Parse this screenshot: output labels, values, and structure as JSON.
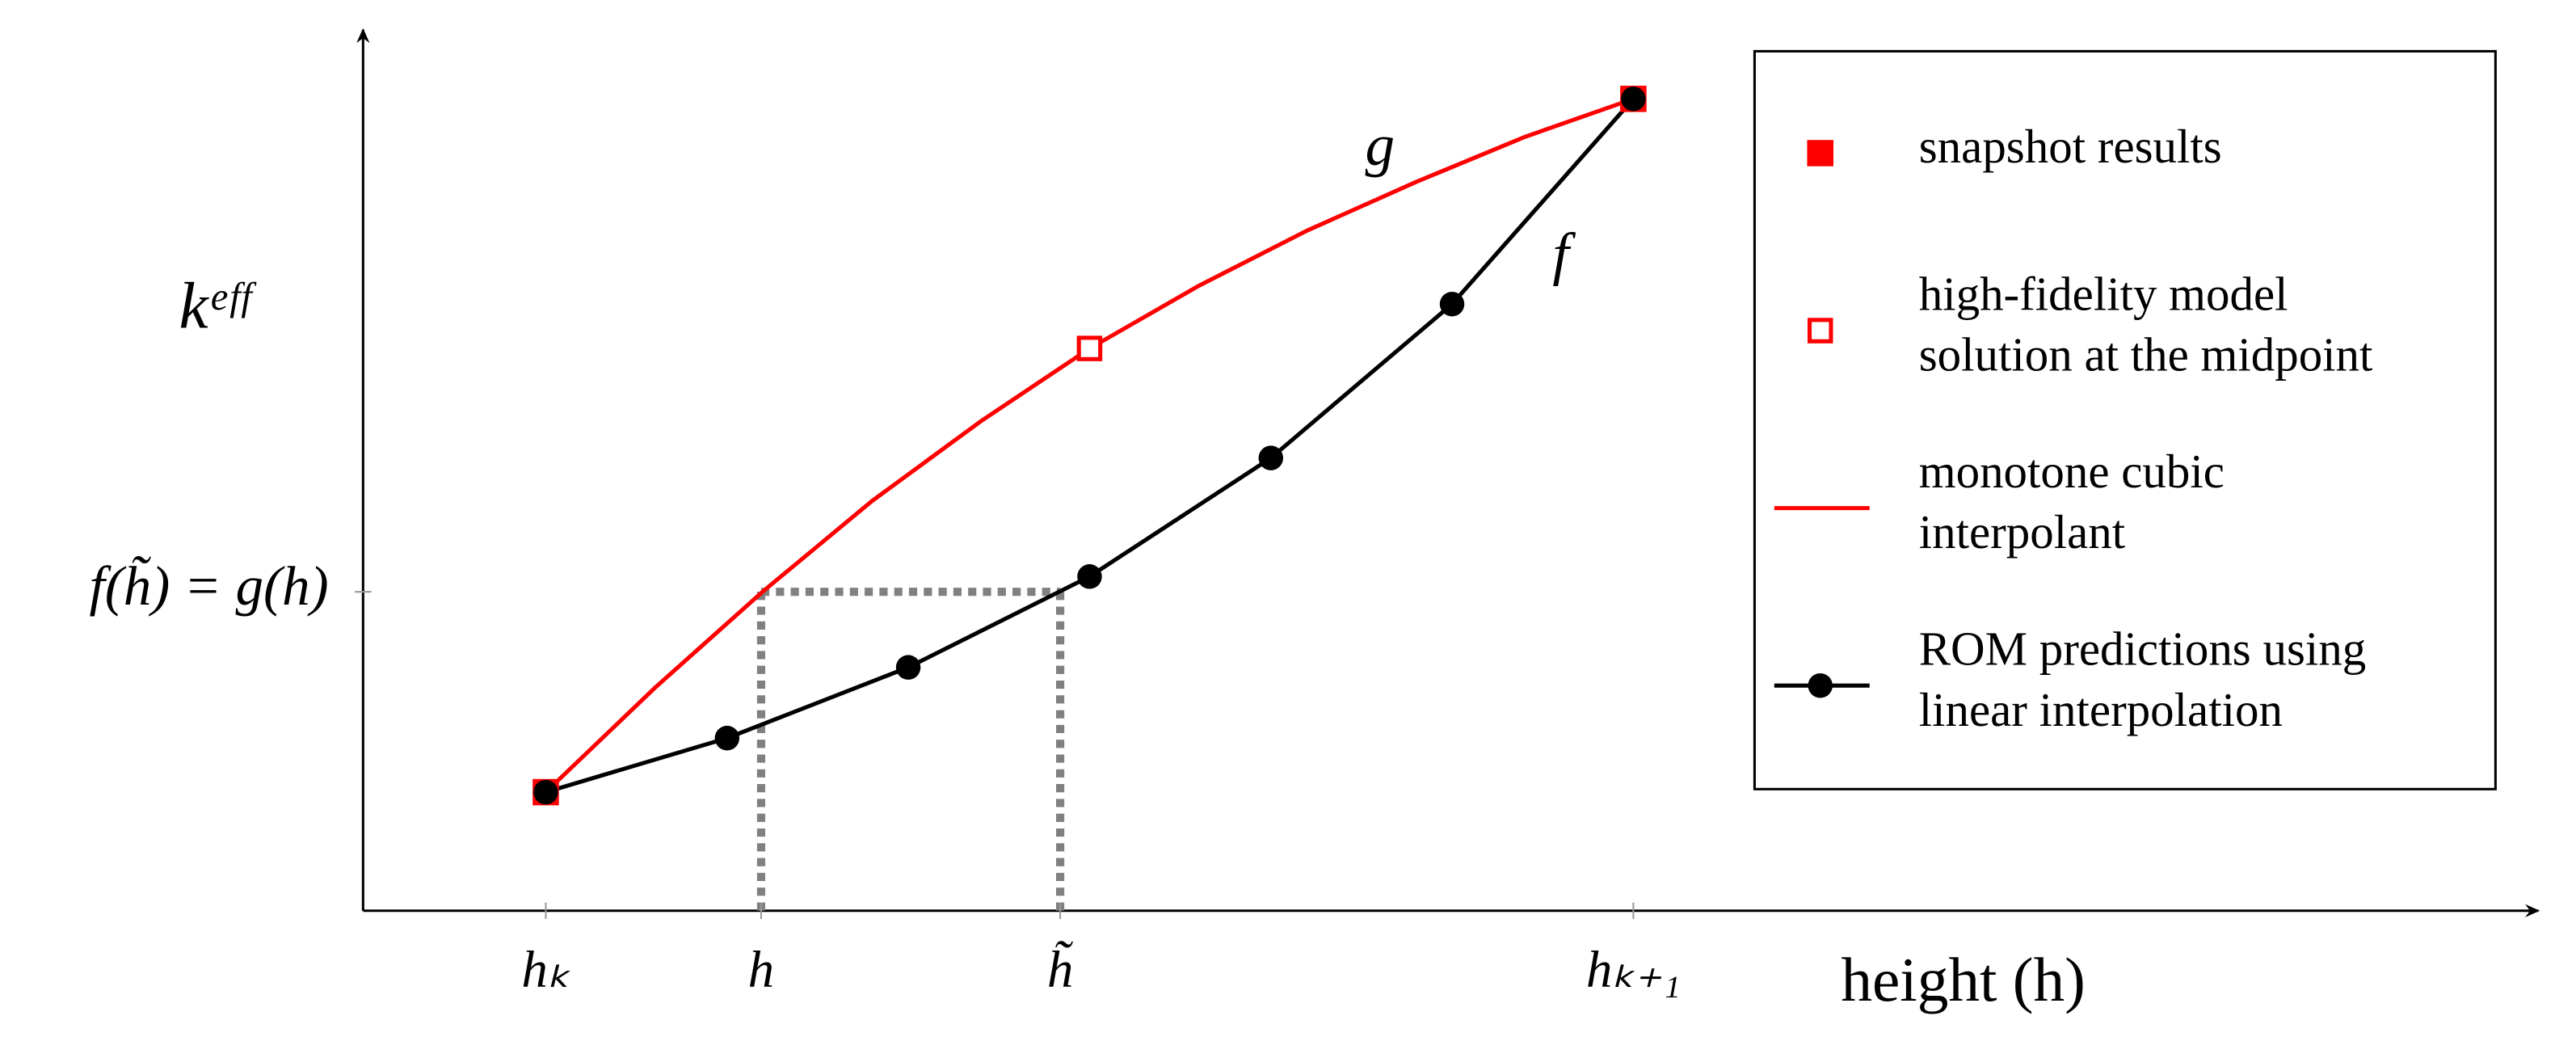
{
  "chart_data": {
    "type": "line",
    "x_label": "height (h)",
    "y_label": "kᵉᶠᶠ",
    "xlim": [
      -0.168,
      1.832
    ],
    "ylim": [
      -0.171,
      1.0995
    ],
    "xticks": [
      {
        "value": 0,
        "label": "hₖ"
      },
      {
        "value": 0.198,
        "label": "h"
      },
      {
        "value": 0.473,
        "label": "h̃"
      },
      {
        "value": 1,
        "label": "hₖ₊₁"
      }
    ],
    "yticks": [
      {
        "value": 0.289,
        "label": "f(h̃) = g(h)"
      }
    ],
    "series": [
      {
        "name": "snapshot results",
        "color": "#ff0000",
        "marker": "square",
        "line": false,
        "x": [
          0,
          1
        ],
        "values": [
          0,
          1
        ]
      },
      {
        "name": "high-fidelity model\nsolution at the midpoint",
        "color": "#ff0000",
        "marker": "open-square",
        "line": false,
        "x": [
          0.5
        ],
        "values": [
          0.64
        ]
      },
      {
        "name": "monotone cubic\ninterpolant",
        "color": "#ff0000",
        "marker": "none",
        "line": true,
        "x": [
          0,
          0.1,
          0.2,
          0.3,
          0.4,
          0.5,
          0.6,
          0.7,
          0.8,
          0.9,
          1
        ],
        "values": [
          0,
          0.15,
          0.29,
          0.42,
          0.535,
          0.64,
          0.73,
          0.81,
          0.88,
          0.945,
          1
        ]
      },
      {
        "name": "ROM predictions using\nlinear interpolation",
        "color": "#000000",
        "marker": "circle",
        "line": true,
        "x": [
          0,
          0.1667,
          0.3333,
          0.5,
          0.6667,
          0.8333,
          1
        ],
        "values": [
          0,
          0.078,
          0.18,
          0.311,
          0.482,
          0.704,
          1
        ]
      }
    ],
    "annotations": [
      "g",
      "f"
    ],
    "guide_color": "#808080"
  }
}
